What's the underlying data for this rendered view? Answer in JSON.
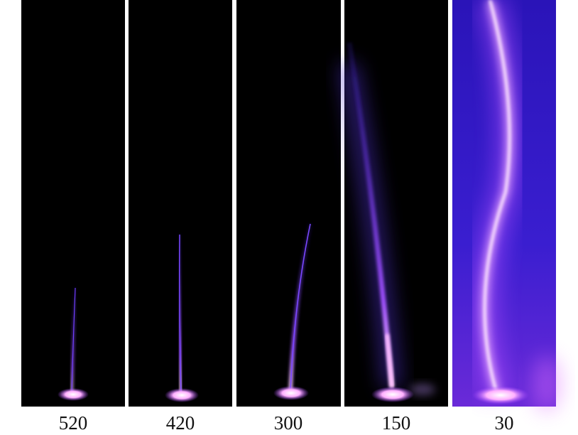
{
  "panels": [
    {
      "label": "520"
    },
    {
      "label": "420"
    },
    {
      "label": "300"
    },
    {
      "label": "150"
    },
    {
      "label": "30"
    }
  ]
}
